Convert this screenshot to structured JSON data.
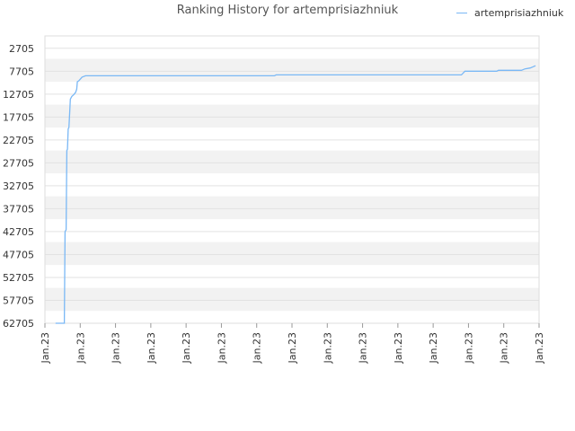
{
  "chart_data": {
    "type": "line",
    "title": "Ranking History for artemprisiazhniuk",
    "xlabel": "",
    "ylabel": "",
    "y_inverted": true,
    "ylim": [
      62705,
      0
    ],
    "y_ticks": [
      "2705",
      "7705",
      "12705",
      "17705",
      "22705",
      "27705",
      "32705",
      "37705",
      "42705",
      "47705",
      "52705",
      "57705",
      "62705"
    ],
    "x_ticks": [
      "Jan.23",
      "Jan.23",
      "Jan.23",
      "Jan.23",
      "Jan.23",
      "Jan.23",
      "Jan.23",
      "Jan.23",
      "Jan.23",
      "Jan.23",
      "Jan.23",
      "Jan.23",
      "Jan.23",
      "Jan.23",
      "Jan.23"
    ],
    "xlim": [
      0,
      14
    ],
    "grid": true,
    "legend_position": "top-right",
    "series": [
      {
        "name": "artemprisiazhniuk",
        "color": "#7ab8f5",
        "points": [
          [
            0.3,
            62705
          ],
          [
            0.55,
            62705
          ],
          [
            0.57,
            42705
          ],
          [
            0.6,
            42300
          ],
          [
            0.62,
            25000
          ],
          [
            0.64,
            24700
          ],
          [
            0.66,
            20300
          ],
          [
            0.68,
            20000
          ],
          [
            0.7,
            17000
          ],
          [
            0.72,
            13800
          ],
          [
            0.76,
            13200
          ],
          [
            0.82,
            12800
          ],
          [
            0.87,
            12300
          ],
          [
            0.9,
            11600
          ],
          [
            0.92,
            10000
          ],
          [
            0.96,
            9800
          ],
          [
            1.05,
            9000
          ],
          [
            1.15,
            8700
          ],
          [
            2.5,
            8700
          ],
          [
            4.0,
            8700
          ],
          [
            5.5,
            8700
          ],
          [
            6.5,
            8700
          ],
          [
            6.55,
            8500
          ],
          [
            8.0,
            8500
          ],
          [
            11.8,
            8500
          ],
          [
            11.9,
            7700
          ],
          [
            12.8,
            7700
          ],
          [
            12.85,
            7500
          ],
          [
            13.5,
            7500
          ],
          [
            13.6,
            7200
          ],
          [
            13.75,
            7000
          ],
          [
            13.9,
            6500
          ]
        ]
      }
    ]
  }
}
